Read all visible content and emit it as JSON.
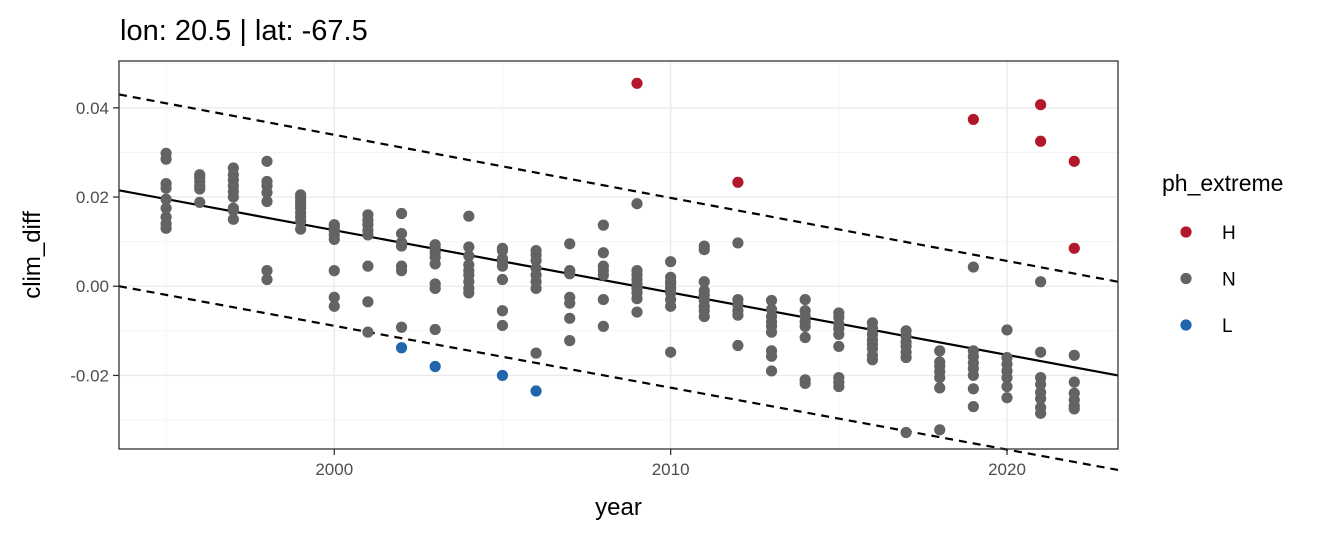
{
  "chart_data": {
    "type": "scatter",
    "title": "lon: 20.5 | lat: -67.5",
    "xlabel": "year",
    "ylabel": "clim_diff",
    "xlim": [
      1993.6,
      2023.3
    ],
    "ylim": [
      -0.0365,
      0.0505
    ],
    "x_ticks": [
      2000,
      2010,
      2020
    ],
    "x_tick_labels": [
      "2000",
      "2010",
      "2020"
    ],
    "y_ticks": [
      -0.02,
      0.0,
      0.02,
      0.04
    ],
    "y_tick_labels": [
      "-0.02",
      "0.00",
      "0.02",
      "0.04"
    ],
    "grid": true,
    "legend": {
      "title": "ph_extreme",
      "placement": "right",
      "entries": [
        {
          "label": "H",
          "color": "#b2182b"
        },
        {
          "label": "N",
          "color": "#636363"
        },
        {
          "label": "L",
          "color": "#2166ac"
        }
      ]
    },
    "trend_line": {
      "x": [
        1993.6,
        2023.3
      ],
      "y": [
        0.0215,
        -0.02
      ]
    },
    "upper_band": {
      "x": [
        1993.6,
        2023.3
      ],
      "y": [
        0.043,
        0.001
      ]
    },
    "lower_band": {
      "x": [
        1993.6,
        2023.3
      ],
      "y": [
        0.0,
        -0.0412
      ]
    },
    "series": [
      {
        "name": "H",
        "color": "#b2182b",
        "points": [
          [
            2009,
            0.0455
          ],
          [
            2012,
            0.0233
          ],
          [
            2019,
            0.0374
          ],
          [
            2021,
            0.0407
          ],
          [
            2021,
            0.0325
          ],
          [
            2022,
            0.028
          ],
          [
            2022,
            0.0085
          ]
        ]
      },
      {
        "name": "N",
        "color": "#636363",
        "points": [
          [
            1995,
            0.0298
          ],
          [
            1995,
            0.0285
          ],
          [
            1995,
            0.023
          ],
          [
            1995,
            0.022
          ],
          [
            1995,
            0.0195
          ],
          [
            1995,
            0.0175
          ],
          [
            1995,
            0.0155
          ],
          [
            1995,
            0.014
          ],
          [
            1995,
            0.013
          ],
          [
            1996,
            0.025
          ],
          [
            1996,
            0.0243
          ],
          [
            1996,
            0.0235
          ],
          [
            1996,
            0.0225
          ],
          [
            1996,
            0.0218
          ],
          [
            1996,
            0.0188
          ],
          [
            1997,
            0.0265
          ],
          [
            1997,
            0.025
          ],
          [
            1997,
            0.0238
          ],
          [
            1997,
            0.0225
          ],
          [
            1997,
            0.0212
          ],
          [
            1997,
            0.02
          ],
          [
            1997,
            0.0175
          ],
          [
            1997,
            0.017
          ],
          [
            1997,
            0.015
          ],
          [
            1998,
            0.028
          ],
          [
            1998,
            0.0235
          ],
          [
            1998,
            0.0225
          ],
          [
            1998,
            0.021
          ],
          [
            1998,
            0.019
          ],
          [
            1998,
            0.0035
          ],
          [
            1998,
            0.0015
          ],
          [
            1999,
            0.0205
          ],
          [
            1999,
            0.0198
          ],
          [
            1999,
            0.019
          ],
          [
            1999,
            0.0183
          ],
          [
            1999,
            0.0175
          ],
          [
            1999,
            0.0165
          ],
          [
            1999,
            0.0155
          ],
          [
            1999,
            0.0145
          ],
          [
            1999,
            0.0128
          ],
          [
            2000,
            0.0138
          ],
          [
            2000,
            0.0132
          ],
          [
            2000,
            0.0125
          ],
          [
            2000,
            0.0115
          ],
          [
            2000,
            0.0105
          ],
          [
            2000,
            0.0035
          ],
          [
            2000,
            -0.0025
          ],
          [
            2000,
            -0.0045
          ],
          [
            2001,
            0.016
          ],
          [
            2001,
            0.0148
          ],
          [
            2001,
            0.0138
          ],
          [
            2001,
            0.0125
          ],
          [
            2001,
            0.0115
          ],
          [
            2001,
            0.0045
          ],
          [
            2001,
            -0.0035
          ],
          [
            2001,
            -0.0103
          ],
          [
            2002,
            0.0163
          ],
          [
            2002,
            0.0118
          ],
          [
            2002,
            0.0098
          ],
          [
            2002,
            0.009
          ],
          [
            2002,
            0.0045
          ],
          [
            2002,
            0.0035
          ],
          [
            2002,
            -0.0092
          ],
          [
            2003,
            0.0093
          ],
          [
            2003,
            0.0085
          ],
          [
            2003,
            0.0075
          ],
          [
            2003,
            0.0065
          ],
          [
            2003,
            0.005
          ],
          [
            2003,
            0.0005
          ],
          [
            2003,
            -0.0005
          ],
          [
            2003,
            -0.0097
          ],
          [
            2004,
            0.0157
          ],
          [
            2004,
            0.0088
          ],
          [
            2004,
            0.0068
          ],
          [
            2004,
            0.0048
          ],
          [
            2004,
            0.0035
          ],
          [
            2004,
            0.0025
          ],
          [
            2004,
            0.001
          ],
          [
            2004,
            -0.0005
          ],
          [
            2004,
            -0.0015
          ],
          [
            2005,
            0.0085
          ],
          [
            2005,
            0.008
          ],
          [
            2005,
            0.0062
          ],
          [
            2005,
            0.0055
          ],
          [
            2005,
            0.0045
          ],
          [
            2005,
            0.0015
          ],
          [
            2005,
            -0.0055
          ],
          [
            2005,
            -0.0088
          ],
          [
            2006,
            0.008
          ],
          [
            2006,
            0.007
          ],
          [
            2006,
            0.0058
          ],
          [
            2006,
            0.004
          ],
          [
            2006,
            0.0025
          ],
          [
            2006,
            0.001
          ],
          [
            2006,
            -0.0005
          ],
          [
            2006,
            -0.015
          ],
          [
            2007,
            0.0095
          ],
          [
            2007,
            0.0035
          ],
          [
            2007,
            0.0028
          ],
          [
            2007,
            -0.0025
          ],
          [
            2007,
            -0.0038
          ],
          [
            2007,
            -0.0072
          ],
          [
            2007,
            -0.0122
          ],
          [
            2008,
            0.0137
          ],
          [
            2008,
            0.0075
          ],
          [
            2008,
            0.0045
          ],
          [
            2008,
            0.0035
          ],
          [
            2008,
            0.0025
          ],
          [
            2008,
            -0.003
          ],
          [
            2008,
            -0.009
          ],
          [
            2009,
            0.0185
          ],
          [
            2009,
            0.0035
          ],
          [
            2009,
            0.0025
          ],
          [
            2009,
            0.0015
          ],
          [
            2009,
            0.0005
          ],
          [
            2009,
            -0.0005
          ],
          [
            2009,
            -0.0015
          ],
          [
            2009,
            -0.0028
          ],
          [
            2009,
            -0.0058
          ],
          [
            2010,
            0.0055
          ],
          [
            2010,
            0.002
          ],
          [
            2010,
            0.001
          ],
          [
            2010,
            0.0005
          ],
          [
            2010,
            -0.0005
          ],
          [
            2010,
            -0.0015
          ],
          [
            2010,
            -0.003
          ],
          [
            2010,
            -0.0045
          ],
          [
            2010,
            -0.0148
          ],
          [
            2011,
            0.009
          ],
          [
            2011,
            0.0082
          ],
          [
            2011,
            0.001
          ],
          [
            2011,
            -0.001
          ],
          [
            2011,
            -0.002
          ],
          [
            2011,
            -0.0032
          ],
          [
            2011,
            -0.0045
          ],
          [
            2011,
            -0.0055
          ],
          [
            2011,
            -0.0068
          ],
          [
            2012,
            0.0097
          ],
          [
            2012,
            -0.003
          ],
          [
            2012,
            -0.0042
          ],
          [
            2012,
            -0.0055
          ],
          [
            2012,
            -0.0065
          ],
          [
            2012,
            -0.0133
          ],
          [
            2013,
            -0.0032
          ],
          [
            2013,
            -0.0052
          ],
          [
            2013,
            -0.0068
          ],
          [
            2013,
            -0.008
          ],
          [
            2013,
            -0.009
          ],
          [
            2013,
            -0.0103
          ],
          [
            2013,
            -0.0145
          ],
          [
            2013,
            -0.0157
          ],
          [
            2013,
            -0.019
          ],
          [
            2014,
            -0.003
          ],
          [
            2014,
            -0.0055
          ],
          [
            2014,
            -0.0068
          ],
          [
            2014,
            -0.008
          ],
          [
            2014,
            -0.009
          ],
          [
            2014,
            -0.0115
          ],
          [
            2014,
            -0.021
          ],
          [
            2014,
            -0.0218
          ],
          [
            2015,
            -0.006
          ],
          [
            2015,
            -0.007
          ],
          [
            2015,
            -0.0085
          ],
          [
            2015,
            -0.0095
          ],
          [
            2015,
            -0.0108
          ],
          [
            2015,
            -0.0135
          ],
          [
            2015,
            -0.0205
          ],
          [
            2015,
            -0.0215
          ],
          [
            2015,
            -0.0225
          ],
          [
            2016,
            -0.0082
          ],
          [
            2016,
            -0.0095
          ],
          [
            2016,
            -0.0108
          ],
          [
            2016,
            -0.012
          ],
          [
            2016,
            -0.013
          ],
          [
            2016,
            -0.014
          ],
          [
            2016,
            -0.0155
          ],
          [
            2016,
            -0.0165
          ],
          [
            2017,
            -0.01
          ],
          [
            2017,
            -0.0112
          ],
          [
            2017,
            -0.0125
          ],
          [
            2017,
            -0.0135
          ],
          [
            2017,
            -0.0148
          ],
          [
            2017,
            -0.016
          ],
          [
            2017,
            -0.0328
          ],
          [
            2018,
            -0.0145
          ],
          [
            2018,
            -0.017
          ],
          [
            2018,
            -0.018
          ],
          [
            2018,
            -0.0192
          ],
          [
            2018,
            -0.0205
          ],
          [
            2018,
            -0.0228
          ],
          [
            2018,
            -0.0322
          ],
          [
            2019,
            0.0043
          ],
          [
            2019,
            -0.0145
          ],
          [
            2019,
            -0.0158
          ],
          [
            2019,
            -0.0172
          ],
          [
            2019,
            -0.0185
          ],
          [
            2019,
            -0.02
          ],
          [
            2019,
            -0.023
          ],
          [
            2019,
            -0.027
          ],
          [
            2020,
            -0.0098
          ],
          [
            2020,
            -0.016
          ],
          [
            2020,
            -0.0175
          ],
          [
            2020,
            -0.019
          ],
          [
            2020,
            -0.0205
          ],
          [
            2020,
            -0.0225
          ],
          [
            2020,
            -0.025
          ],
          [
            2021,
            0.001
          ],
          [
            2021,
            -0.0148
          ],
          [
            2021,
            -0.0205
          ],
          [
            2021,
            -0.022
          ],
          [
            2021,
            -0.0238
          ],
          [
            2021,
            -0.0252
          ],
          [
            2021,
            -0.0272
          ],
          [
            2021,
            -0.0285
          ],
          [
            2022,
            -0.0155
          ],
          [
            2022,
            -0.0215
          ],
          [
            2022,
            -0.024
          ],
          [
            2022,
            -0.0255
          ],
          [
            2022,
            -0.0268
          ],
          [
            2022,
            -0.0275
          ]
        ]
      },
      {
        "name": "L",
        "color": "#2166ac",
        "points": [
          [
            2002,
            -0.0138
          ],
          [
            2003,
            -0.018
          ],
          [
            2005,
            -0.02
          ],
          [
            2006,
            -0.0235
          ]
        ]
      }
    ]
  }
}
